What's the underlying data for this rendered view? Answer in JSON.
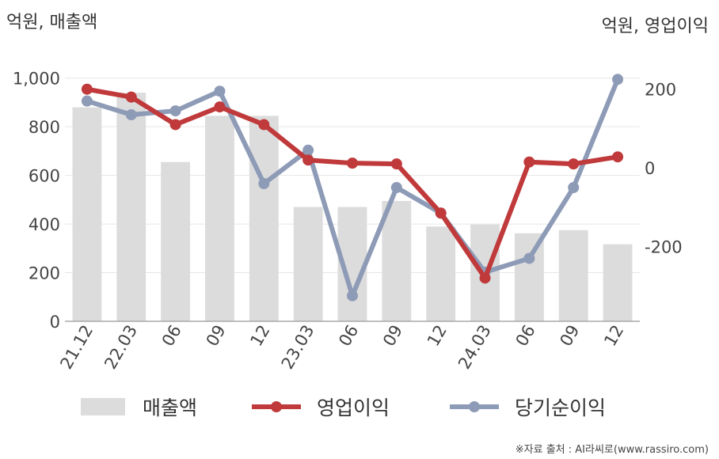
{
  "chart_data": {
    "type": "bar+line",
    "categories": [
      "21.12",
      "22.03",
      "06",
      "09",
      "12",
      "23.03",
      "06",
      "09",
      "12",
      "24.03",
      "06",
      "09",
      "12"
    ],
    "left_axis": {
      "unit_label": "억원, 매출액",
      "ylim": [
        0,
        1100
      ],
      "ticks": [
        "0",
        "200",
        "400",
        "600",
        "800",
        "1,000"
      ],
      "tick_values": [
        0,
        200,
        400,
        600,
        800,
        1000
      ]
    },
    "right_axis": {
      "unit_label": "억원, 영업이익",
      "ylim": [
        -390,
        290
      ],
      "ticks": [
        "-200",
        "0",
        "200"
      ],
      "tick_values": [
        -200,
        0,
        200
      ]
    },
    "series": [
      {
        "name": "매출액",
        "type": "bar",
        "axis": "left",
        "color": "#dcdcdc",
        "values": [
          880,
          940,
          655,
          845,
          845,
          470,
          470,
          495,
          390,
          398,
          362,
          375,
          317
        ]
      },
      {
        "name": "영업이익",
        "type": "line",
        "axis": "right",
        "color": "#c0393b",
        "values": [
          200,
          180,
          110,
          155,
          110,
          20,
          12,
          10,
          -115,
          -280,
          15,
          10,
          28
        ]
      },
      {
        "name": "당기순이익",
        "type": "line",
        "axis": "right",
        "color": "#8e9bb7",
        "values": [
          170,
          135,
          145,
          195,
          -40,
          45,
          -325,
          -50,
          -115,
          -265,
          -230,
          -50,
          225
        ]
      }
    ],
    "grid": true,
    "legend_position": "bottom"
  },
  "source": "※자료 출처 : AI라씨로(www.rassiro.com)"
}
